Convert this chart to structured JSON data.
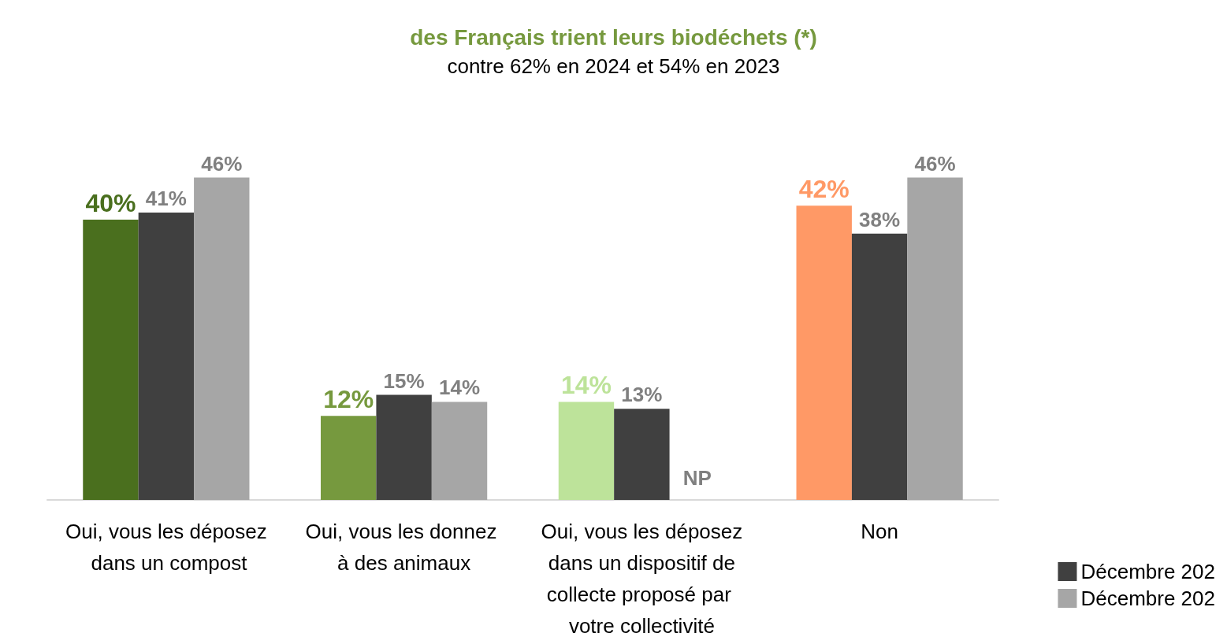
{
  "chart_data": {
    "type": "bar",
    "title": "des Français trient leurs biodéchets (*)",
    "subtitle": "contre 62% en 2024 et 54% en 2023",
    "categories": [
      "Oui, vous les déposez dans un compost",
      "Oui, vous les donnez à des animaux",
      "Oui, vous les déposez dans un dispositif de collecte proposé par votre collectivité",
      "Non"
    ],
    "series": [
      {
        "colors": [
          "#4a6f1e",
          "#76993e",
          "#bde39a",
          "#ff9966"
        ],
        "values": [
          40,
          12,
          14,
          42
        ],
        "value_labels": [
          "40%",
          "12%",
          "14%",
          "42%"
        ]
      },
      {
        "name": "Décembre 202",
        "color": "#404040",
        "values": [
          41,
          15,
          13,
          38
        ],
        "value_labels": [
          "41%",
          "15%",
          "13%",
          "38%"
        ]
      },
      {
        "name": "Décembre 202",
        "color": "#a6a6a6",
        "values": [
          46,
          14,
          null,
          46
        ],
        "value_labels": [
          "46%",
          "14%",
          "NP",
          "46%"
        ]
      }
    ],
    "legend": "bottom right",
    "grid": false
  }
}
